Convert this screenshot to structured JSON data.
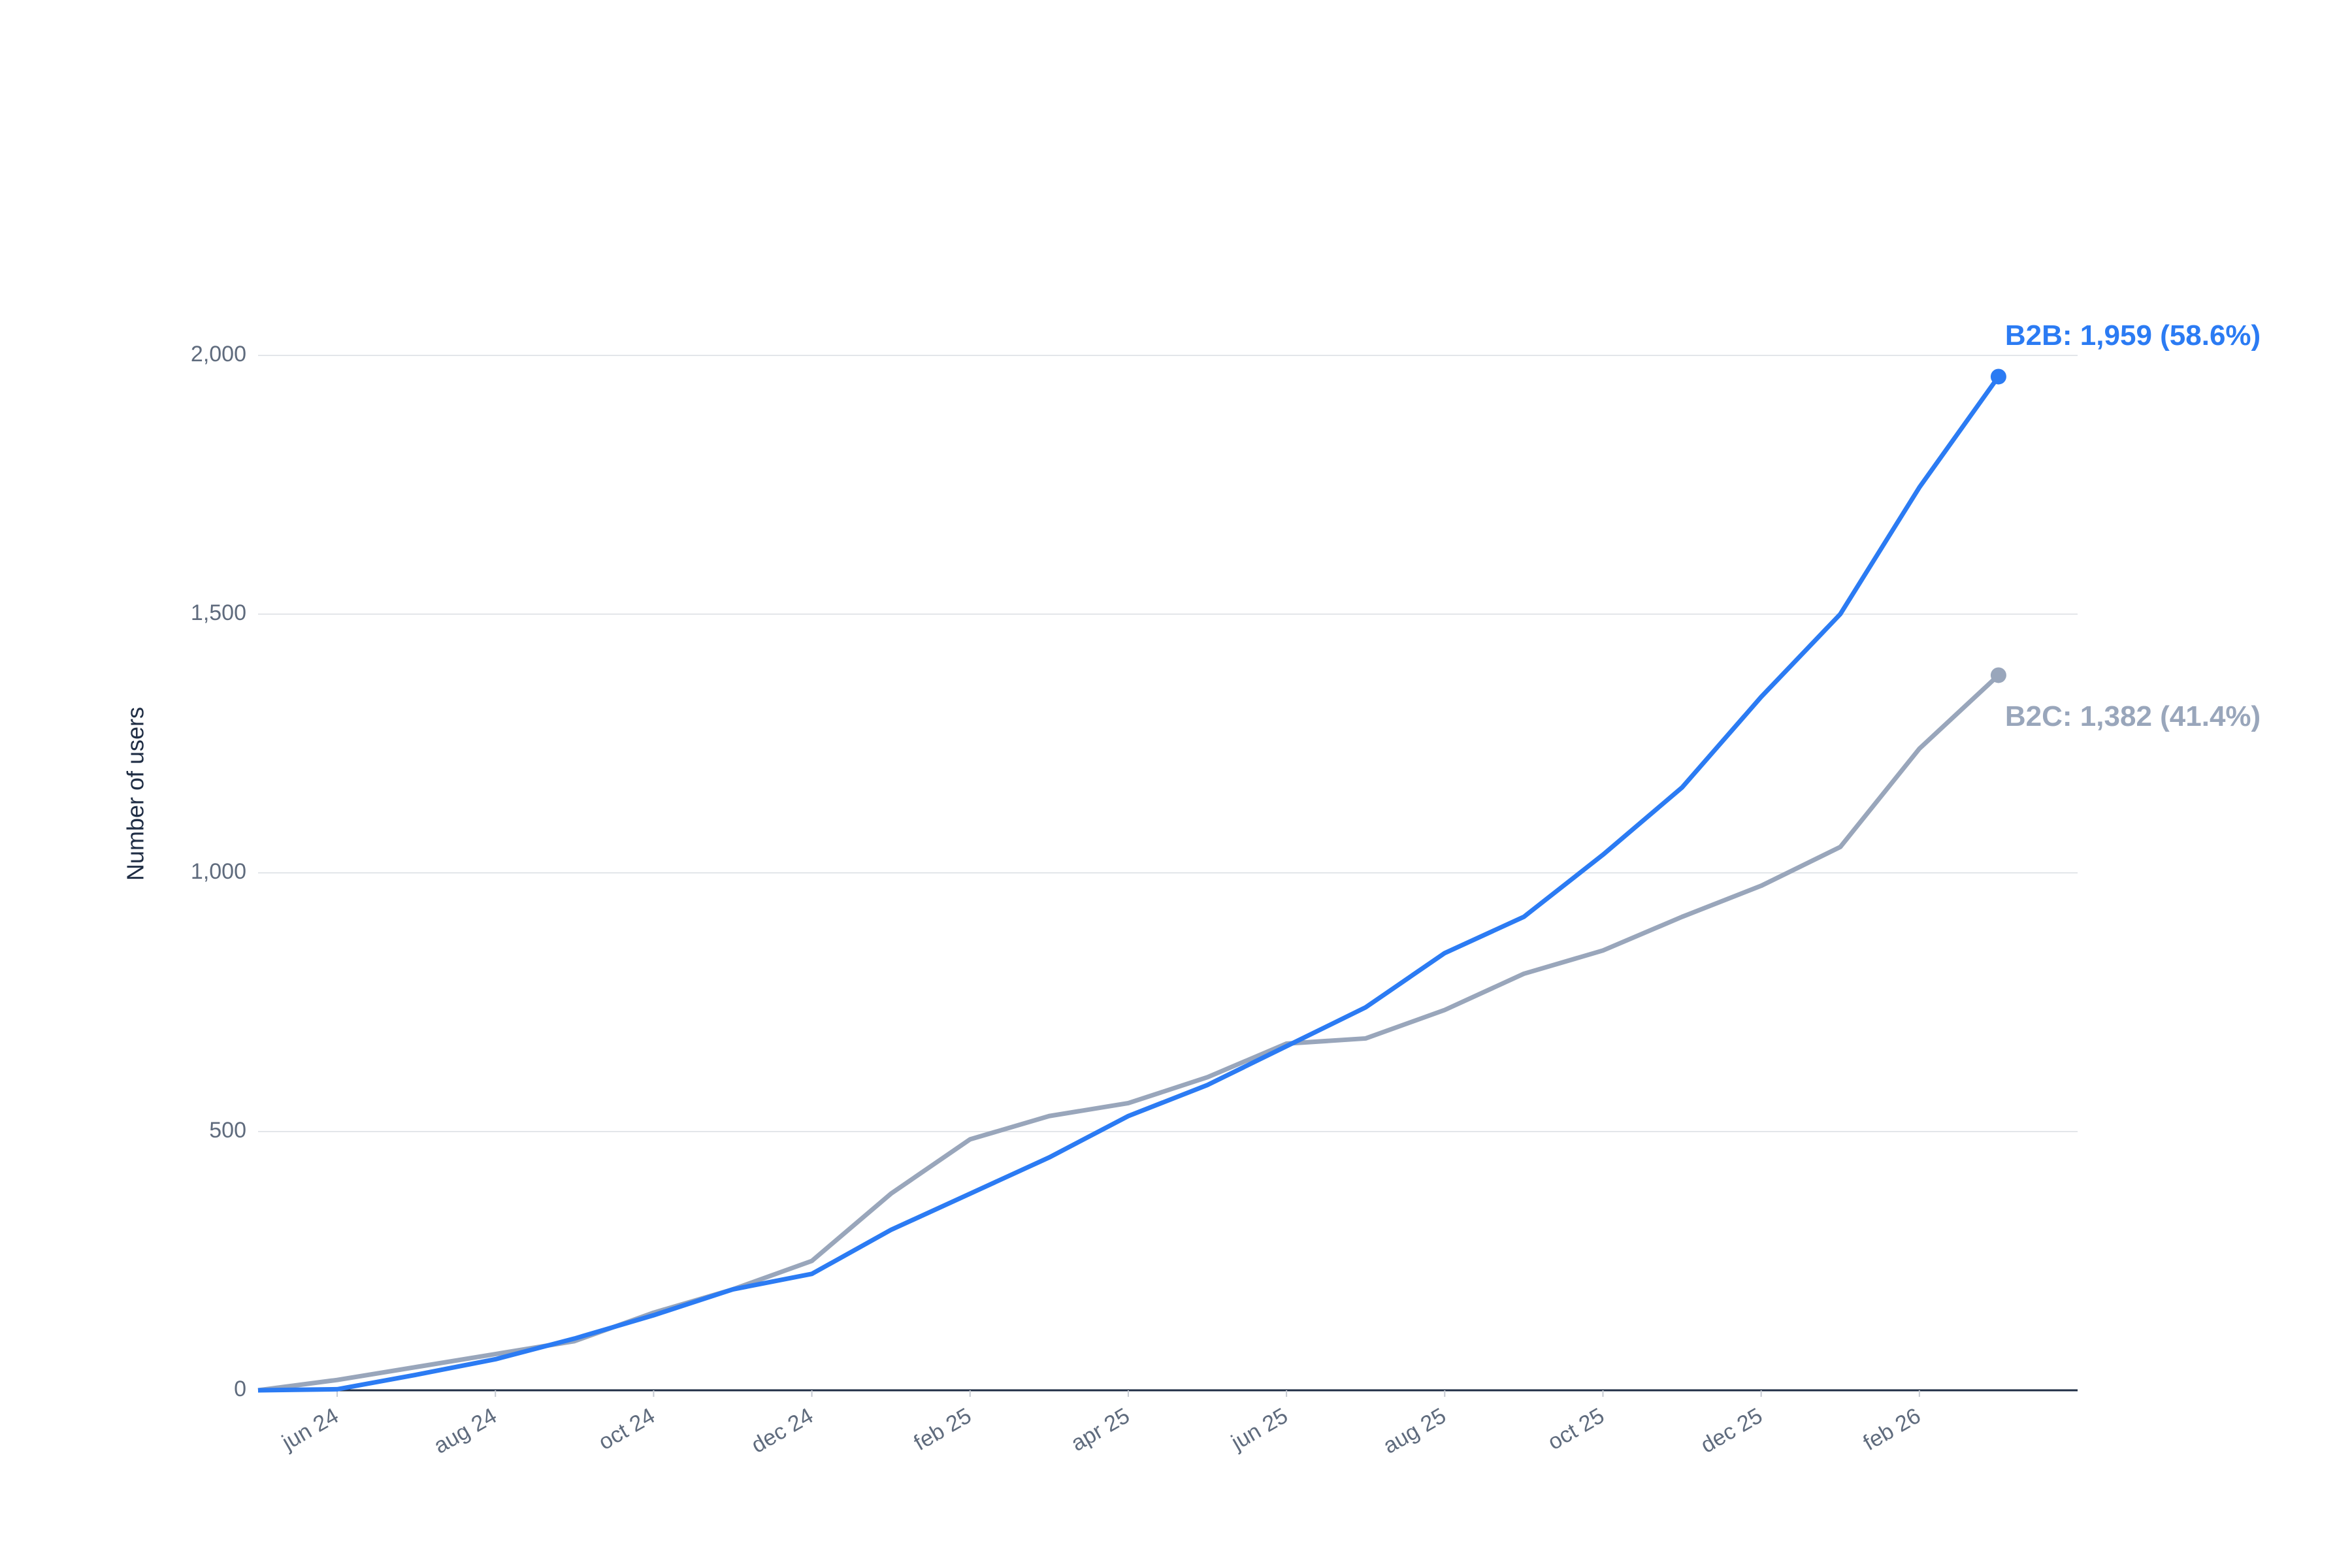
{
  "chart_data": {
    "type": "line",
    "y_label": "Number of users",
    "x": [
      "2024-05",
      "2024-06",
      "2024-07",
      "2024-08",
      "2024-09",
      "2024-10",
      "2024-11",
      "2024-12",
      "2025-01",
      "2025-02",
      "2025-03",
      "2025-04",
      "2025-05",
      "2025-06",
      "2025-07",
      "2025-08",
      "2025-09",
      "2025-10",
      "2025-11",
      "2025-12",
      "2026-01",
      "2026-02",
      "2026-03"
    ],
    "series": [
      {
        "name": "B2B",
        "color": "#2b7bf3",
        "label": "B2B: 1,959 (58.6%)",
        "values": [
          0,
          2,
          30,
          60,
          100,
          145,
          195,
          225,
          310,
          380,
          450,
          530,
          590,
          665,
          740,
          845,
          915,
          1035,
          1165,
          1340,
          1500,
          1745,
          1959
        ]
      },
      {
        "name": "B2C",
        "color": "#99a6bb",
        "label": "B2C: 1,382 (41.4%)",
        "values": [
          0,
          20,
          45,
          70,
          95,
          150,
          195,
          250,
          380,
          485,
          530,
          555,
          605,
          670,
          680,
          735,
          805,
          850,
          915,
          975,
          1050,
          1240,
          1382
        ]
      }
    ],
    "xlim": [
      "2024-05",
      "2026-04"
    ],
    "xticks": [
      {
        "value": "2024-06",
        "label": "jun 24"
      },
      {
        "value": "2024-08",
        "label": "aug 24"
      },
      {
        "value": "2024-10",
        "label": "oct 24"
      },
      {
        "value": "2024-12",
        "label": "dec 24"
      },
      {
        "value": "2025-02",
        "label": "feb 25"
      },
      {
        "value": "2025-04",
        "label": "apr 25"
      },
      {
        "value": "2025-06",
        "label": "jun 25"
      },
      {
        "value": "2025-08",
        "label": "aug 25"
      },
      {
        "value": "2025-10",
        "label": "oct 25"
      },
      {
        "value": "2025-12",
        "label": "dec 25"
      },
      {
        "value": "2026-02",
        "label": "feb 26"
      }
    ],
    "ylim": [
      0,
      2000
    ],
    "yticks": [
      0,
      500,
      {
        "value": 1000,
        "label": "1,000"
      },
      {
        "value": 1500,
        "label": "1,500"
      },
      {
        "value": 2000,
        "label": "2,000"
      }
    ],
    "grid": true
  }
}
